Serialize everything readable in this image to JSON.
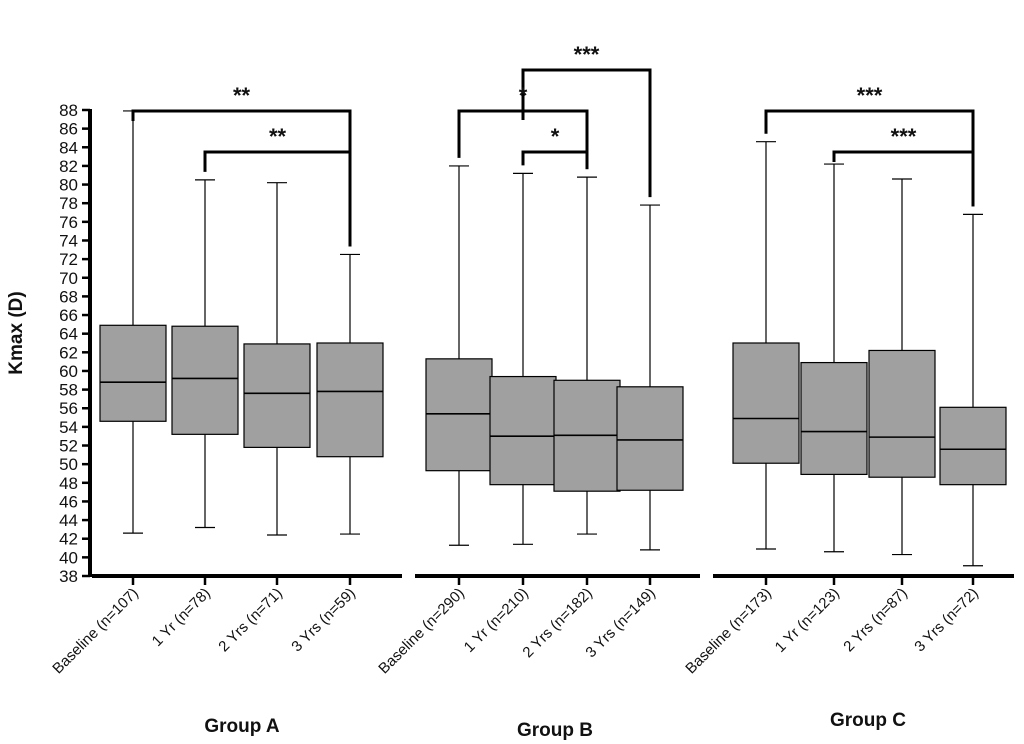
{
  "chart_data": {
    "type": "box",
    "ylabel": "Kmax (D)",
    "ylim": [
      38,
      88
    ],
    "yticks": [
      38,
      40,
      42,
      44,
      46,
      48,
      50,
      52,
      54,
      56,
      58,
      60,
      62,
      64,
      66,
      68,
      70,
      72,
      74,
      76,
      78,
      80,
      82,
      84,
      86,
      88
    ],
    "box_color": "#a0a0a0",
    "groups": [
      {
        "label": "Group A",
        "boxes": [
          {
            "label": "Baseline (n=107)",
            "min": 42.6,
            "q1": 54.6,
            "median": 58.8,
            "q3": 64.9,
            "max": 87.9
          },
          {
            "label": "1 Yr (n=78)",
            "min": 43.2,
            "q1": 53.2,
            "median": 59.2,
            "q3": 64.8,
            "max": 80.5
          },
          {
            "label": "2 Yrs (n=71)",
            "min": 42.4,
            "q1": 51.8,
            "median": 57.6,
            "q3": 62.9,
            "max": 80.2
          },
          {
            "label": "3 Yrs (n=59)",
            "min": 42.5,
            "q1": 50.8,
            "median": 57.8,
            "q3": 63.0,
            "max": 72.5
          }
        ],
        "comparisons": [
          {
            "from": 0,
            "to": 3,
            "stars": "**",
            "level": 2
          },
          {
            "from": 1,
            "to": 3,
            "stars": "**",
            "level": 1
          }
        ]
      },
      {
        "label": "Group B",
        "boxes": [
          {
            "label": "Baseline (n=290)",
            "min": 41.3,
            "q1": 49.3,
            "median": 55.4,
            "q3": 61.3,
            "max": 82.0
          },
          {
            "label": "1 Yr (n=210)",
            "min": 41.4,
            "q1": 47.8,
            "median": 53.0,
            "q3": 59.4,
            "max": 81.2
          },
          {
            "label": "2 Yrs (n=182)",
            "min": 42.5,
            "q1": 47.1,
            "median": 53.1,
            "q3": 59.0,
            "max": 80.8
          },
          {
            "label": "3 Yrs (n=149)",
            "min": 40.8,
            "q1": 47.2,
            "median": 52.6,
            "q3": 58.3,
            "max": 77.8
          }
        ],
        "comparisons": [
          {
            "from": 1,
            "to": 3,
            "stars": "***",
            "level": 3
          },
          {
            "from": 0,
            "to": 2,
            "stars": "*",
            "level": 2
          },
          {
            "from": 1,
            "to": 2,
            "stars": "*",
            "level": 1
          }
        ]
      },
      {
        "label": "Group C",
        "boxes": [
          {
            "label": "Baseline (n=173)",
            "min": 40.9,
            "q1": 50.1,
            "median": 54.9,
            "q3": 63.0,
            "max": 84.6
          },
          {
            "label": "1 Yr (n=123)",
            "min": 40.6,
            "q1": 48.9,
            "median": 53.5,
            "q3": 60.9,
            "max": 82.2
          },
          {
            "label": "2 Yrs (n=87)",
            "min": 40.3,
            "q1": 48.6,
            "median": 52.9,
            "q3": 62.2,
            "max": 80.6
          },
          {
            "label": "3 Yrs (n=72)",
            "min": 39.1,
            "q1": 47.8,
            "median": 51.6,
            "q3": 56.1,
            "max": 76.8
          }
        ],
        "comparisons": [
          {
            "from": 0,
            "to": 3,
            "stars": "***",
            "level": 2
          },
          {
            "from": 1,
            "to": 3,
            "stars": "***",
            "level": 1
          }
        ]
      }
    ]
  }
}
